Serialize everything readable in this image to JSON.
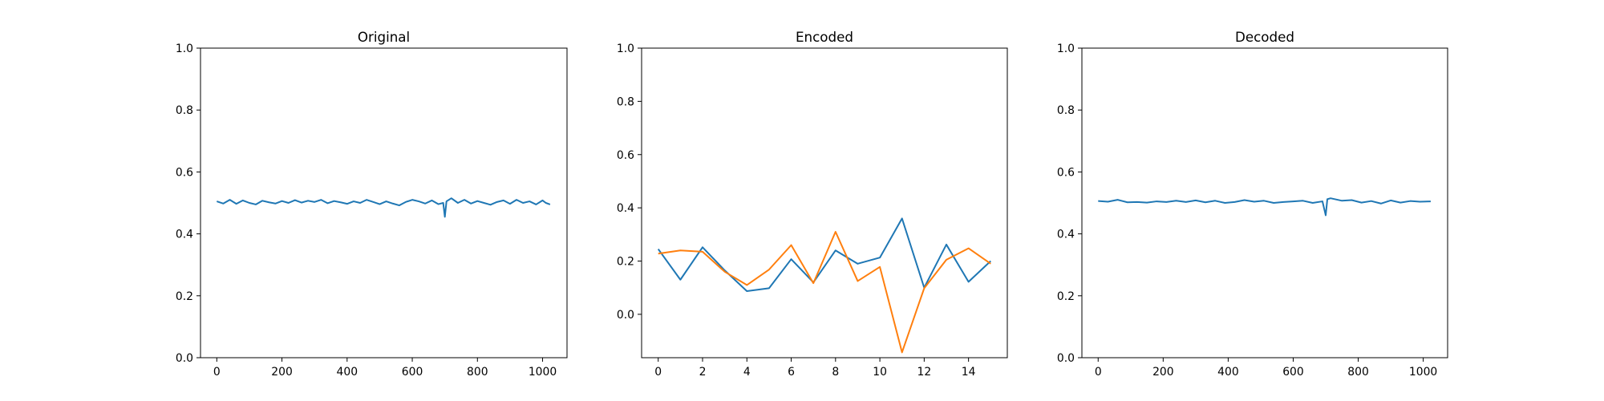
{
  "chart_data": [
    {
      "type": "line",
      "title": "Original",
      "xlabel": "",
      "ylabel": "",
      "xlim": [
        -50,
        1075
      ],
      "ylim": [
        0.0,
        1.0
      ],
      "xticks": [
        0,
        200,
        400,
        600,
        800,
        1000
      ],
      "yticks": [
        0.0,
        0.2,
        0.4,
        0.6,
        0.8,
        1.0
      ],
      "grid": false,
      "series": [
        {
          "color": "#1f77b4",
          "x": [
            0,
            20,
            40,
            60,
            80,
            100,
            120,
            140,
            160,
            180,
            200,
            220,
            240,
            260,
            280,
            300,
            320,
            340,
            360,
            380,
            400,
            420,
            440,
            460,
            480,
            500,
            520,
            540,
            560,
            580,
            600,
            620,
            640,
            660,
            680,
            695,
            700,
            705,
            720,
            740,
            760,
            780,
            800,
            820,
            840,
            860,
            880,
            900,
            920,
            940,
            960,
            980,
            1000,
            1010,
            1023
          ],
          "y": [
            0.505,
            0.498,
            0.51,
            0.497,
            0.508,
            0.5,
            0.495,
            0.507,
            0.502,
            0.498,
            0.506,
            0.5,
            0.509,
            0.501,
            0.507,
            0.503,
            0.51,
            0.499,
            0.506,
            0.502,
            0.497,
            0.505,
            0.5,
            0.51,
            0.503,
            0.496,
            0.505,
            0.498,
            0.492,
            0.503,
            0.51,
            0.505,
            0.498,
            0.508,
            0.496,
            0.5,
            0.455,
            0.505,
            0.515,
            0.5,
            0.51,
            0.498,
            0.506,
            0.5,
            0.494,
            0.503,
            0.508,
            0.497,
            0.51,
            0.5,
            0.505,
            0.495,
            0.508,
            0.5,
            0.495
          ]
        }
      ]
    },
    {
      "type": "line",
      "title": "Encoded",
      "xlabel": "",
      "ylabel": "",
      "xlim": [
        -0.75,
        15.75
      ],
      "ylim": [
        -0.163,
        1.0
      ],
      "xticks": [
        0,
        2,
        4,
        6,
        8,
        10,
        12,
        14
      ],
      "yticks": [
        0.0,
        0.2,
        0.4,
        0.6,
        0.8,
        1.0
      ],
      "grid": false,
      "series": [
        {
          "color": "#1f77b4",
          "x": [
            0,
            1,
            2,
            3,
            4,
            5,
            6,
            7,
            8,
            9,
            10,
            11,
            12,
            13,
            14,
            15
          ],
          "y": [
            0.245,
            0.13,
            0.252,
            0.165,
            0.087,
            0.098,
            0.207,
            0.12,
            0.24,
            0.19,
            0.213,
            0.36,
            0.1,
            0.262,
            0.122,
            0.2
          ]
        },
        {
          "color": "#ff7f0e",
          "x": [
            0,
            1,
            2,
            3,
            4,
            5,
            6,
            7,
            8,
            9,
            10,
            11,
            12,
            13,
            14,
            15
          ],
          "y": [
            0.228,
            0.24,
            0.235,
            0.16,
            0.11,
            0.168,
            0.26,
            0.117,
            0.31,
            0.125,
            0.178,
            -0.143,
            0.098,
            0.205,
            0.248,
            0.19
          ]
        }
      ]
    },
    {
      "type": "line",
      "title": "Decoded",
      "xlabel": "",
      "ylabel": "",
      "xlim": [
        -50,
        1075
      ],
      "ylim": [
        0.0,
        1.0
      ],
      "xticks": [
        0,
        200,
        400,
        600,
        800,
        1000
      ],
      "yticks": [
        0.0,
        0.2,
        0.4,
        0.6,
        0.8,
        1.0
      ],
      "grid": false,
      "series": [
        {
          "color": "#1f77b4",
          "x": [
            0,
            30,
            60,
            90,
            120,
            150,
            180,
            210,
            240,
            270,
            300,
            330,
            360,
            390,
            420,
            450,
            480,
            510,
            540,
            570,
            600,
            630,
            660,
            690,
            700,
            705,
            715,
            750,
            780,
            810,
            840,
            870,
            900,
            930,
            960,
            990,
            1023
          ],
          "y": [
            0.506,
            0.504,
            0.51,
            0.502,
            0.503,
            0.501,
            0.505,
            0.503,
            0.507,
            0.503,
            0.508,
            0.502,
            0.507,
            0.5,
            0.503,
            0.509,
            0.504,
            0.507,
            0.5,
            0.503,
            0.505,
            0.507,
            0.5,
            0.505,
            0.46,
            0.512,
            0.515,
            0.507,
            0.509,
            0.501,
            0.506,
            0.498,
            0.508,
            0.501,
            0.506,
            0.504,
            0.505
          ]
        }
      ]
    }
  ]
}
